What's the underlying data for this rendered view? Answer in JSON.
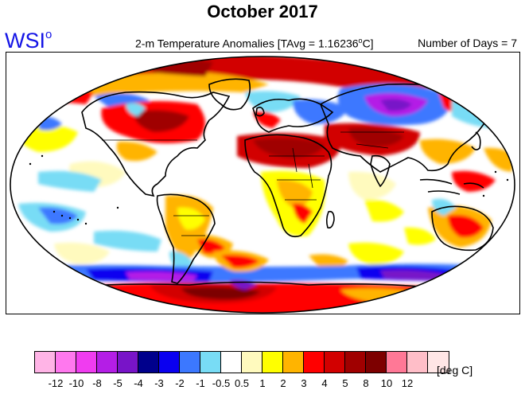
{
  "title": "October 2017",
  "logo": {
    "text": "WSI",
    "superscript": "o"
  },
  "subtitle": {
    "prefix": "2-m Temperature Anomalies [TAvg = 1.16236",
    "degree": "o",
    "suffix": "C]"
  },
  "days_label": "Number of Days = 7",
  "colorbar": {
    "colors": [
      "#ffb4e6",
      "#ff78ee",
      "#f03cf0",
      "#b41ee6",
      "#7814c8",
      "#00008c",
      "#0a00f0",
      "#3c78ff",
      "#78dcf5",
      "#ffffff",
      "#fffabe",
      "#ffff00",
      "#ffb400",
      "#ff0000",
      "#d20000",
      "#a00000",
      "#7d0000",
      "#ff7896",
      "#ffbec8",
      "#ffe6e6"
    ],
    "tick_labels": [
      "-12",
      "-10",
      "-8",
      "-5",
      "-4",
      "-3",
      "-2",
      "-1",
      "-0.5",
      "0.5",
      "1",
      "2",
      "3",
      "4",
      "5",
      "8",
      "10",
      "12"
    ],
    "units": "[deg C]"
  }
}
